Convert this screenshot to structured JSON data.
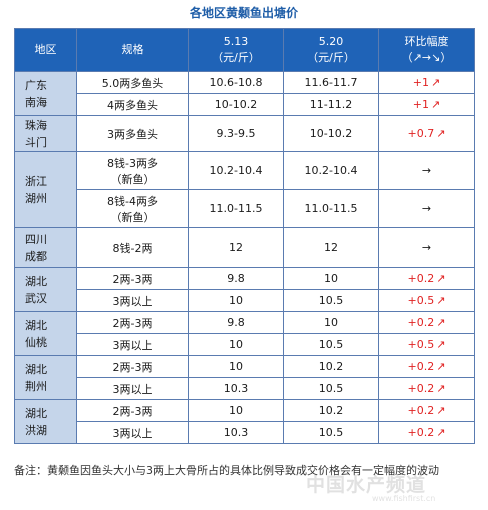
{
  "title": "各地区黄颡鱼出塘价",
  "headers": {
    "region": "地区",
    "spec": "规格",
    "d1_date": "5.13",
    "d1_unit": "（元/斤）",
    "d2_date": "5.20",
    "d2_unit": "（元/斤）",
    "change": "环比幅度",
    "change_sub": "（↗→↘）"
  },
  "groups": [
    {
      "region_line1": "广东",
      "region_line2": "南海",
      "rows": [
        {
          "spec": "5.0两多鱼头",
          "v1": "10.6-10.8",
          "v2": "11.6-11.7",
          "change": "+1",
          "trend": "up"
        },
        {
          "spec": "4两多鱼头",
          "v1": "10-10.2",
          "v2": "11-11.2",
          "change": "+1",
          "trend": "up"
        }
      ]
    },
    {
      "region_line1": "珠海",
      "region_line2": "斗门",
      "rows": [
        {
          "spec": "3两多鱼头",
          "v1": "9.3-9.5",
          "v2": "10-10.2",
          "change": "+0.7",
          "trend": "up"
        }
      ]
    },
    {
      "region_line1": "浙江",
      "region_line2": "湖州",
      "rows": [
        {
          "spec": "8钱-3两多",
          "spec2": "（新鱼）",
          "v1": "10.2-10.4",
          "v2": "10.2-10.4",
          "change": "",
          "trend": "flat"
        },
        {
          "spec": "8钱-4两多",
          "spec2": "（新鱼）",
          "v1": "11.0-11.5",
          "v2": "11.0-11.5",
          "change": "",
          "trend": "flat"
        }
      ]
    },
    {
      "region_line1": "四川",
      "region_line2": "成都",
      "rows": [
        {
          "spec": "8钱-2两",
          "v1": "12",
          "v2": "12",
          "change": "",
          "trend": "flat"
        }
      ]
    },
    {
      "region_line1": "湖北",
      "region_line2": "武汉",
      "rows": [
        {
          "spec": "2两-3两",
          "v1": "9.8",
          "v2": "10",
          "change": "+0.2",
          "trend": "up"
        },
        {
          "spec": "3两以上",
          "v1": "10",
          "v2": "10.5",
          "change": "+0.5",
          "trend": "up"
        }
      ]
    },
    {
      "region_line1": "湖北",
      "region_line2": "仙桃",
      "rows": [
        {
          "spec": "2两-3两",
          "v1": "9.8",
          "v2": "10",
          "change": "+0.2",
          "trend": "up"
        },
        {
          "spec": "3两以上",
          "v1": "10",
          "v2": "10.5",
          "change": "+0.5",
          "trend": "up"
        }
      ]
    },
    {
      "region_line1": "湖北",
      "region_line2": "荆州",
      "rows": [
        {
          "spec": "2两-3两",
          "v1": "10",
          "v2": "10.2",
          "change": "+0.2",
          "trend": "up"
        },
        {
          "spec": "3两以上",
          "v1": "10.3",
          "v2": "10.5",
          "change": "+0.2",
          "trend": "up"
        }
      ]
    },
    {
      "region_line1": "湖北",
      "region_line2": "洪湖",
      "rows": [
        {
          "spec": "2两-3两",
          "v1": "10",
          "v2": "10.2",
          "change": "+0.2",
          "trend": "up"
        },
        {
          "spec": "3两以上",
          "v1": "10.3",
          "v2": "10.5",
          "change": "+0.2",
          "trend": "up"
        }
      ]
    }
  ],
  "note": "备注：黄颡鱼因鱼头大小与3两上大骨所占的具体比例导致成交价格会有一定幅度的波动",
  "watermark": "中国水产频道",
  "watermark_url": "www.fishfirst.cn",
  "colors": {
    "header_bg": "#1f63b7",
    "region_bg": "#c5d5ea",
    "up": "#e02222"
  }
}
